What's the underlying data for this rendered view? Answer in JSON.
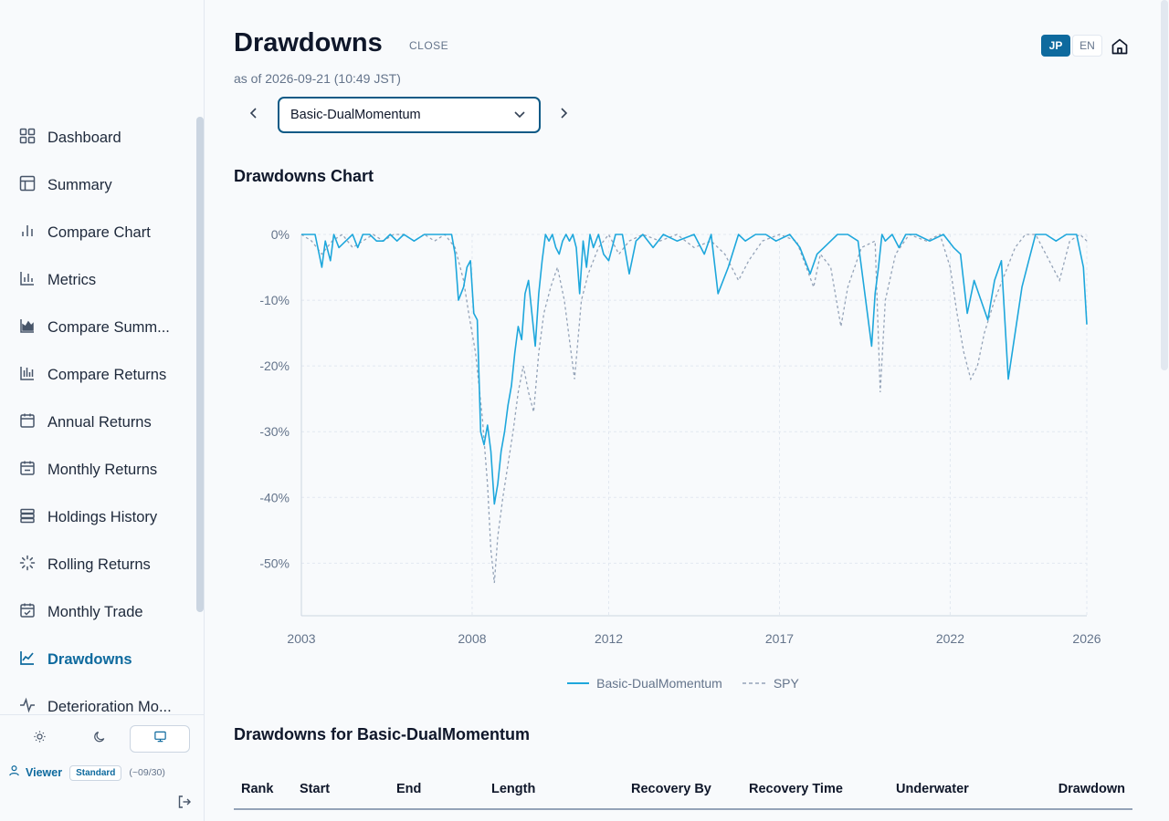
{
  "sidebar": {
    "items": [
      {
        "label": "Dashboard",
        "icon": "grid-icon",
        "active": false
      },
      {
        "label": "Summary",
        "icon": "layout-icon",
        "active": false
      },
      {
        "label": "Compare Chart",
        "icon": "bar-chart-icon",
        "active": false
      },
      {
        "label": "Metrics",
        "icon": "chart-axis-icon",
        "active": false
      },
      {
        "label": "Compare Summ...",
        "icon": "area-chart-icon",
        "active": false
      },
      {
        "label": "Compare Returns",
        "icon": "multi-bar-icon",
        "active": false
      },
      {
        "label": "Annual Returns",
        "icon": "calendar-icon",
        "active": false
      },
      {
        "label": "Monthly Returns",
        "icon": "calendar-minus-icon",
        "active": false
      },
      {
        "label": "Holdings History",
        "icon": "stack-icon",
        "active": false
      },
      {
        "label": "Rolling Returns",
        "icon": "loader-icon",
        "active": false
      },
      {
        "label": "Monthly Trade",
        "icon": "calendar-check-icon",
        "active": false
      },
      {
        "label": "Drawdowns",
        "icon": "line-chart-icon",
        "active": true
      },
      {
        "label": "Deterioration Mo...",
        "icon": "activity-icon",
        "active": false
      }
    ],
    "theme_options": [
      "sun-icon",
      "moon-icon",
      "monitor-icon"
    ],
    "user": {
      "name": "Viewer",
      "plan": "Standard",
      "expiry": "(~09/30)"
    }
  },
  "header": {
    "title": "Drawdowns",
    "close_label": "CLOSE",
    "as_of": "as of 2026-09-21 (10:49 JST)",
    "lang": {
      "jp": "JP",
      "en": "EN",
      "active": "JP"
    },
    "strategy": "Basic-DualMomentum"
  },
  "chart_section": {
    "title": "Drawdowns Chart"
  },
  "colors": {
    "accent": "#0e6a9e",
    "series_main": "#1ea7dc",
    "series_benchmark": "#94a3b8"
  },
  "chart_data": {
    "type": "line",
    "title": "Drawdowns Chart",
    "xlabel": "",
    "ylabel": "",
    "x_range": [
      2003.0,
      2026.0
    ],
    "ylim": [
      -58,
      0
    ],
    "x_ticks": [
      "2003",
      "2008",
      "2012",
      "2017",
      "2022",
      "2026"
    ],
    "y_ticks": [
      "0%",
      "-10%",
      "-20%",
      "-30%",
      "-40%",
      "-50%"
    ],
    "grid": true,
    "legend": "bottom-center",
    "series": [
      {
        "name": "Basic-DualMomentum",
        "style": "solid",
        "x": [
          2003.0,
          2003.4,
          2003.6,
          2003.7,
          2003.85,
          2003.95,
          2004.1,
          2004.3,
          2004.5,
          2004.65,
          2004.8,
          2005.0,
          2005.2,
          2005.4,
          2005.6,
          2005.8,
          2006.0,
          2006.3,
          2006.6,
          2007.0,
          2007.4,
          2007.5,
          2007.6,
          2007.75,
          2007.85,
          2007.95,
          2008.05,
          2008.15,
          2008.25,
          2008.35,
          2008.45,
          2008.55,
          2008.65,
          2008.75,
          2008.85,
          2008.95,
          2009.05,
          2009.15,
          2009.25,
          2009.35,
          2009.45,
          2009.55,
          2009.65,
          2009.75,
          2009.85,
          2009.95,
          2010.05,
          2010.15,
          2010.25,
          2010.35,
          2010.45,
          2010.55,
          2010.65,
          2010.75,
          2010.85,
          2010.95,
          2011.05,
          2011.15,
          2011.25,
          2011.35,
          2011.45,
          2011.55,
          2011.7,
          2011.85,
          2012.0,
          2012.2,
          2012.4,
          2012.6,
          2012.8,
          2013.0,
          2013.3,
          2013.6,
          2014.0,
          2014.5,
          2014.8,
          2015.0,
          2015.2,
          2015.5,
          2015.8,
          2016.0,
          2016.3,
          2016.6,
          2016.9,
          2017.3,
          2017.6,
          2017.9,
          2018.1,
          2018.3,
          2018.5,
          2018.7,
          2019.0,
          2019.3,
          2019.7,
          2019.8,
          2019.9,
          2020.0,
          2020.1,
          2020.3,
          2020.5,
          2020.7,
          2021.0,
          2021.4,
          2021.8,
          2022.1,
          2022.3,
          2022.5,
          2022.7,
          2022.9,
          2023.1,
          2023.3,
          2023.5,
          2023.7,
          2023.9,
          2024.1,
          2024.3,
          2024.5,
          2024.8,
          2025.1,
          2025.4,
          2025.7,
          2025.9,
          2026.0
        ],
        "y": [
          0,
          0,
          -5,
          -1,
          -4,
          0,
          -2,
          -1,
          0,
          -2,
          0,
          0,
          -1,
          -1,
          0,
          -1,
          0,
          -1,
          0,
          0,
          0,
          -3,
          -10,
          -8,
          -5,
          -4,
          -12,
          -13,
          -30,
          -32,
          -29,
          -33,
          -41,
          -38,
          -33,
          -30,
          -26,
          -23,
          -18,
          -14,
          -16,
          -9,
          -7,
          -12,
          -17,
          -9,
          -4,
          0,
          -1,
          0,
          -2,
          -3,
          -1,
          0,
          -1,
          0,
          -2,
          -9,
          -1,
          -5,
          0,
          -2,
          0,
          -3,
          -4,
          0,
          0,
          -6,
          -1,
          0,
          -2,
          0,
          -1,
          0,
          -3,
          0,
          -9,
          -5,
          0,
          -1,
          0,
          0,
          -1,
          0,
          -2,
          -6,
          -3,
          -2,
          -1,
          0,
          0,
          -1,
          -17,
          -9,
          -5,
          0,
          -1,
          0,
          -2,
          0,
          0,
          -1,
          0,
          -2,
          -3,
          -12,
          -7,
          -10,
          -13,
          -7,
          -4,
          -22,
          -15,
          -8,
          -4,
          0,
          0,
          -1,
          0,
          0,
          -5,
          -13.7
        ]
      },
      {
        "name": "SPY",
        "style": "dashed",
        "x": [
          2003.0,
          2003.3,
          2003.6,
          2003.9,
          2004.2,
          2004.5,
          2004.8,
          2005.1,
          2005.4,
          2005.7,
          2006.0,
          2006.3,
          2006.6,
          2006.9,
          2007.2,
          2007.5,
          2007.75,
          2007.9,
          2008.1,
          2008.3,
          2008.45,
          2008.55,
          2008.65,
          2008.75,
          2008.9,
          2009.05,
          2009.2,
          2009.35,
          2009.5,
          2009.65,
          2009.8,
          2009.95,
          2010.1,
          2010.3,
          2010.5,
          2010.7,
          2010.85,
          2011.0,
          2011.2,
          2011.4,
          2011.7,
          2012.0,
          2012.3,
          2012.6,
          2013.0,
          2013.5,
          2014.0,
          2014.5,
          2015.0,
          2015.4,
          2015.8,
          2016.1,
          2016.5,
          2017.0,
          2017.5,
          2018.0,
          2018.2,
          2018.5,
          2018.8,
          2019.0,
          2019.4,
          2019.8,
          2019.95,
          2020.1,
          2020.4,
          2020.8,
          2021.3,
          2021.7,
          2022.0,
          2022.2,
          2022.4,
          2022.6,
          2022.8,
          2023.0,
          2023.3,
          2023.6,
          2023.9,
          2024.2,
          2024.5,
          2024.9,
          2025.2,
          2025.5,
          2025.8,
          2026.0
        ],
        "y": [
          0,
          -1,
          -3,
          -1,
          0,
          -2,
          -1,
          0,
          -1,
          0,
          0,
          -1,
          0,
          -1,
          0,
          -2,
          -7,
          -12,
          -18,
          -28,
          -38,
          -48,
          -53,
          -46,
          -40,
          -35,
          -30,
          -24,
          -20,
          -24,
          -27,
          -18,
          -12,
          -8,
          -5,
          -10,
          -16,
          -22,
          -10,
          -6,
          -2,
          0,
          -3,
          -1,
          0,
          -1,
          0,
          -2,
          -1,
          -3,
          -7,
          -4,
          -1,
          0,
          -1,
          -8,
          -3,
          -5,
          -14,
          -8,
          -2,
          -1,
          -24,
          -10,
          -3,
          0,
          -1,
          0,
          -5,
          -12,
          -18,
          -22,
          -20,
          -15,
          -10,
          -6,
          -2,
          0,
          0,
          -4,
          -7,
          -1,
          0,
          -1
        ]
      }
    ]
  },
  "table": {
    "title": "Drawdowns for Basic-DualMomentum",
    "columns": [
      "Rank",
      "Start",
      "End",
      "Length",
      "Recovery By",
      "Recovery Time",
      "Underwater",
      "Drawdown"
    ]
  }
}
